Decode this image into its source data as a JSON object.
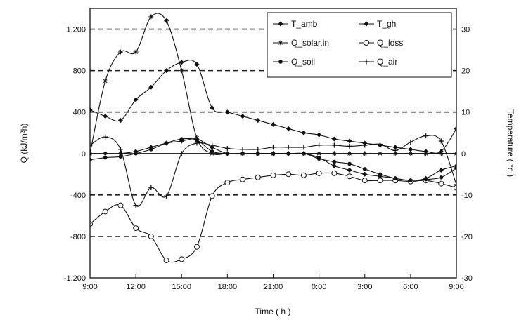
{
  "chart_data": {
    "type": "line",
    "xlabel": "Time ( h )",
    "ylabel_left": "Q (kJ/m²h)",
    "ylabel_right": "Temperature ( °c )",
    "x_ticks": [
      "9:00",
      "12:00",
      "15:00",
      "18:00",
      "21:00",
      "0:00",
      "3:00",
      "6:00",
      "9:00"
    ],
    "x_range": [
      0,
      24
    ],
    "y_left_range": [
      -1200,
      1400
    ],
    "y_left_ticks": [
      "1,200",
      "800",
      "400",
      "0",
      "-400",
      "-800",
      "-1,200"
    ],
    "y_left_tick_values": [
      1200,
      800,
      400,
      0,
      -400,
      -800,
      -1200
    ],
    "y_right_range": [
      -30,
      35
    ],
    "y_right_ticks": [
      "30",
      "20",
      "10",
      "0",
      "-10",
      "-20",
      "-30"
    ],
    "y_right_tick_values": [
      30,
      20,
      10,
      0,
      -10,
      -20,
      -30
    ],
    "grid": "dashed horizontal",
    "legend_position": "top-right",
    "series": [
      {
        "name": "T_amb",
        "axis": "right",
        "marker": "filled-diamond",
        "x": [
          0,
          1,
          2,
          3,
          4,
          5,
          6,
          7,
          8,
          9,
          10,
          11,
          12,
          13,
          14,
          15,
          16,
          17,
          18,
          19,
          20,
          21,
          22,
          23,
          24
        ],
        "y": [
          0,
          0,
          0,
          0.5,
          1.5,
          2.5,
          3,
          3.5,
          1.5,
          0,
          0,
          0,
          0,
          0,
          0,
          -1,
          -3,
          -4,
          -5,
          -5.5,
          -6,
          -6.5,
          -6,
          -4,
          -3
        ]
      },
      {
        "name": "T_gh",
        "axis": "right",
        "marker": "filled-diamond",
        "x": [
          0,
          1,
          2,
          3,
          4,
          5,
          6,
          7,
          8,
          9,
          10,
          11,
          12,
          13,
          14,
          15,
          16,
          17,
          18,
          19,
          20,
          21,
          22,
          23,
          24
        ],
        "y": [
          10.5,
          9,
          8,
          13,
          16,
          20,
          22,
          21.5,
          11,
          10,
          9,
          8,
          7,
          6,
          5,
          4.5,
          3.5,
          3,
          2.5,
          2,
          1.5,
          1,
          0.5,
          0.5,
          6
        ]
      },
      {
        "name": "Q_solar.in",
        "axis": "left",
        "marker": "star",
        "x": [
          0,
          1,
          2,
          3,
          4,
          5,
          6,
          7,
          8,
          9,
          10,
          11,
          12,
          13,
          14,
          15,
          16,
          17,
          18,
          19,
          20,
          21,
          22,
          23,
          24
        ],
        "y": [
          0,
          700,
          980,
          980,
          1320,
          1280,
          800,
          150,
          0,
          0,
          0,
          0,
          0,
          0,
          0,
          0,
          0,
          0,
          0,
          0,
          0,
          0,
          0,
          0,
          0
        ]
      },
      {
        "name": "Q_loss",
        "axis": "left",
        "marker": "open-circle",
        "x": [
          0,
          1,
          2,
          3,
          4,
          5,
          6,
          7,
          8,
          9,
          10,
          11,
          12,
          13,
          14,
          15,
          16,
          17,
          18,
          19,
          20,
          21,
          22,
          23,
          24
        ],
        "y": [
          -680,
          -560,
          -500,
          -720,
          -800,
          -1030,
          -1020,
          -900,
          -410,
          -280,
          -250,
          -230,
          -210,
          -200,
          -210,
          -190,
          -190,
          -220,
          -260,
          -260,
          -260,
          -270,
          -260,
          -290,
          -330
        ]
      },
      {
        "name": "Q_soil",
        "axis": "left",
        "marker": "filled-circle",
        "x": [
          0,
          1,
          2,
          3,
          4,
          5,
          6,
          7,
          8,
          9,
          10,
          11,
          12,
          13,
          14,
          15,
          16,
          17,
          18,
          19,
          20,
          21,
          22,
          23,
          24
        ],
        "y": [
          -60,
          -40,
          -30,
          0,
          40,
          100,
          140,
          130,
          20,
          0,
          0,
          0,
          0,
          0,
          0,
          -50,
          -80,
          -100,
          -150,
          -200,
          -240,
          -260,
          -250,
          -230,
          -140
        ]
      },
      {
        "name": "Q_air",
        "axis": "left",
        "marker": "cross",
        "x": [
          0,
          1,
          2,
          3,
          4,
          5,
          6,
          7,
          8,
          9,
          10,
          11,
          12,
          13,
          14,
          15,
          16,
          17,
          18,
          19,
          20,
          21,
          22,
          23,
          24
        ],
        "y": [
          80,
          160,
          40,
          -500,
          -330,
          -410,
          0,
          100,
          80,
          50,
          40,
          40,
          60,
          60,
          60,
          80,
          80,
          70,
          80,
          90,
          30,
          110,
          170,
          120,
          -300
        ]
      }
    ]
  }
}
